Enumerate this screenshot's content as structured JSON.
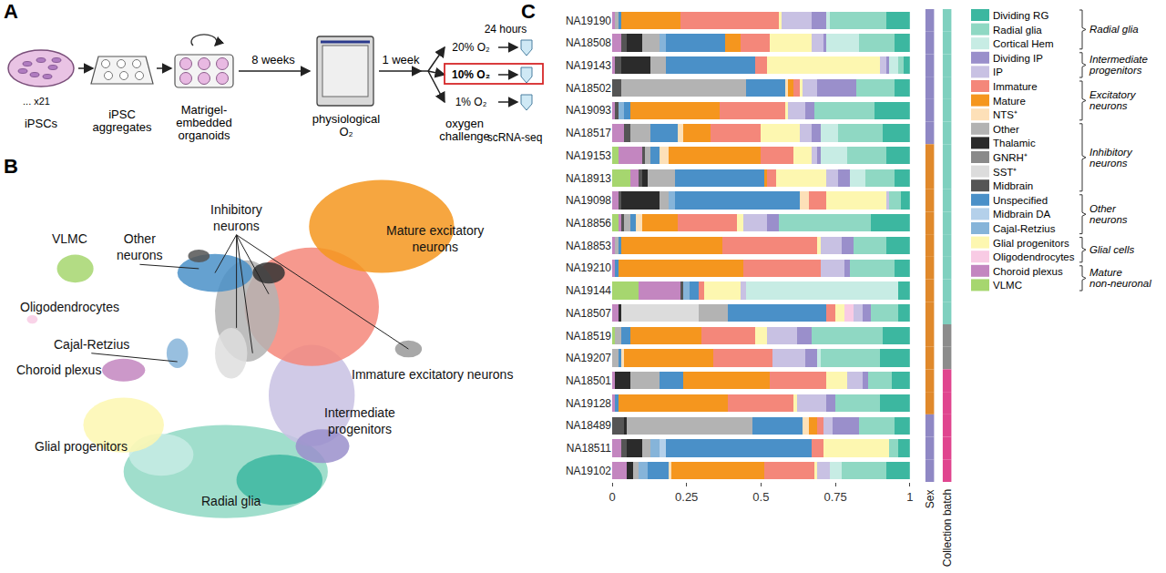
{
  "panel_a": {
    "label": "A",
    "steps": [
      {
        "lines": [
          "iPSCs"
        ],
        "note": "... x21"
      },
      {
        "lines": [
          "iPSC",
          "aggregates"
        ]
      },
      {
        "lines": [
          "Matrigel-",
          "embedded",
          "organoids"
        ]
      },
      {
        "lines": [
          "physiological",
          "O₂"
        ]
      }
    ],
    "transitions": [
      "8 weeks",
      "1 week"
    ],
    "challenge": {
      "label_lines": [
        "oxygen",
        "challenge"
      ],
      "conditions": [
        "20% O₂",
        "10% O₂",
        "1% O₂"
      ],
      "highlighted": "10% O₂",
      "duration": "24 hours",
      "readout": "scRNA-seq"
    }
  },
  "chart_data": [
    {
      "panel_label": "B",
      "type": "umap",
      "xlim": [
        0,
        100
      ],
      "ylim": [
        0,
        100
      ],
      "tick_labels": false,
      "clusters": [
        {
          "color": "#8fd8c3",
          "x": 42,
          "y": 24,
          "rx": 19,
          "ry": 11
        },
        {
          "color": "#3cb7a0",
          "x": 52,
          "y": 22,
          "rx": 8,
          "ry": 6
        },
        {
          "color": "#c7ece4",
          "x": 30,
          "y": 28,
          "rx": 6,
          "ry": 5
        },
        {
          "color": "#c8c1e3",
          "x": 58,
          "y": 42,
          "rx": 8,
          "ry": 12
        },
        {
          "color": "#9a8fcb",
          "x": 60,
          "y": 30,
          "rx": 5,
          "ry": 4
        },
        {
          "color": "#fdf7b0",
          "x": 23,
          "y": 35,
          "rx": 7.5,
          "ry": 6.5
        },
        {
          "color": "#c386c0",
          "x": 23,
          "y": 48,
          "rx": 4,
          "ry": 2.7
        },
        {
          "color": "#a6d66f",
          "x": 14,
          "y": 72,
          "rx": 3.4,
          "ry": 3.3
        },
        {
          "color": "#f8cbe4",
          "x": 6,
          "y": 60,
          "rx": 1,
          "ry": 1
        },
        {
          "color": "#f4877a",
          "x": 58,
          "y": 63,
          "rx": 12.5,
          "ry": 14
        },
        {
          "color": "#f5961e",
          "x": 71,
          "y": 82,
          "rx": 13.5,
          "ry": 11
        },
        {
          "color": "#b3b3b3",
          "x": 46,
          "y": 62,
          "rx": 6,
          "ry": 12
        },
        {
          "color": "#dedede",
          "x": 43,
          "y": 52,
          "rx": 3,
          "ry": 6
        },
        {
          "color": "#4a90c8",
          "x": 40,
          "y": 71,
          "rx": 7,
          "ry": 4.5
        },
        {
          "color": "#333333",
          "x": 50,
          "y": 71,
          "rx": 3,
          "ry": 2.5
        },
        {
          "color": "#555555",
          "x": 37,
          "y": 75,
          "rx": 2,
          "ry": 1.5
        },
        {
          "color": "#86b4d9",
          "x": 33,
          "y": 52,
          "rx": 2,
          "ry": 3.5
        },
        {
          "color": "#999999",
          "x": 76,
          "y": 53,
          "rx": 2.5,
          "ry": 2
        }
      ],
      "labels": [
        {
          "lines": [
            "VLMC"
          ],
          "x": 13,
          "y": 79
        },
        {
          "lines": [
            "Oligodendrocytes"
          ],
          "x": 13,
          "y": 63
        },
        {
          "lines": [
            "Other",
            "neurons"
          ],
          "x": 26,
          "y": 73,
          "points_to": [
            [
              37,
              72
            ]
          ]
        },
        {
          "lines": [
            "Inhibitory",
            "neurons"
          ],
          "x": 44,
          "y": 80,
          "points_to": [
            [
              40,
              71
            ],
            [
              44,
              58
            ],
            [
              47,
              52
            ],
            [
              50,
              66
            ],
            [
              76,
              53
            ]
          ]
        },
        {
          "lines": [
            "Mature excitatory",
            "neurons"
          ],
          "x": 81,
          "y": 79
        },
        {
          "lines": [
            "Cajal-Retzius"
          ],
          "x": 17,
          "y": 52,
          "points_to": [
            [
              33,
              50
            ]
          ]
        },
        {
          "lines": [
            "Choroid plexus"
          ],
          "x": 11,
          "y": 48
        },
        {
          "lines": [
            "Immature excitatory neurons"
          ],
          "x": 80.5,
          "y": 47
        },
        {
          "lines": [
            "Intermediate",
            "progenitors"
          ],
          "x": 67,
          "y": 36
        },
        {
          "lines": [
            "Glial progenitors"
          ],
          "x": 15,
          "y": 30
        },
        {
          "lines": [
            "Radial glia"
          ],
          "x": 43,
          "y": 17
        }
      ]
    },
    {
      "panel_label": "C",
      "type": "bar",
      "orientation": "horizontal",
      "stacked": true,
      "grid": false,
      "legend": "right",
      "xlim": [
        0,
        1
      ],
      "xticks": [
        0,
        0.25,
        0.5,
        0.75,
        1
      ],
      "categories": [
        "NA19190",
        "NA18508",
        "NA19143",
        "NA18502",
        "NA19093",
        "NA18517",
        "NA19153",
        "NA18913",
        "NA19098",
        "NA18856",
        "NA18853",
        "NA19210",
        "NA19144",
        "NA18507",
        "NA18519",
        "NA19207",
        "NA18501",
        "NA19128",
        "NA18489",
        "NA18511",
        "NA19102"
      ],
      "series": [
        {
          "name": "VLMC",
          "color": "#a6d66f",
          "values": [
            0,
            0,
            0,
            0,
            0,
            0,
            0.02,
            0.06,
            0,
            0.02,
            0,
            0,
            0.09,
            0,
            0.01,
            0,
            0,
            0,
            0,
            0,
            0
          ]
        },
        {
          "name": "Choroid plexus",
          "color": "#c386c0",
          "values": [
            0.01,
            0.03,
            0.01,
            0,
            0.01,
            0.04,
            0.08,
            0.03,
            0.02,
            0.01,
            0.01,
            0.01,
            0.14,
            0.02,
            0,
            0,
            0.01,
            0.01,
            0,
            0.03,
            0.05
          ]
        },
        {
          "name": "Midbrain",
          "color": "#555555",
          "values": [
            0,
            0.02,
            0.02,
            0.03,
            0.01,
            0.02,
            0.01,
            0.01,
            0.01,
            0.01,
            0,
            0,
            0.01,
            0,
            0,
            0,
            0,
            0,
            0.04,
            0.02,
            0
          ]
        },
        {
          "name": "Thalamic",
          "color": "#2b2b2b",
          "values": [
            0,
            0.05,
            0.1,
            0,
            0,
            0,
            0,
            0.02,
            0.13,
            0,
            0,
            0,
            0,
            0.01,
            0,
            0,
            0.05,
            0,
            0.01,
            0.05,
            0.02
          ]
        },
        {
          "name": "GNRH⁺",
          "color": "#8a8a8a",
          "values": [
            0,
            0,
            0,
            0,
            0,
            0,
            0,
            0,
            0,
            0,
            0,
            0,
            0,
            0,
            0,
            0,
            0,
            0,
            0,
            0,
            0
          ]
        },
        {
          "name": "SST⁺",
          "color": "#dcdcdc",
          "values": [
            0,
            0,
            0,
            0,
            0,
            0,
            0,
            0,
            0,
            0,
            0,
            0,
            0,
            0.26,
            0,
            0,
            0,
            0,
            0,
            0,
            0
          ]
        },
        {
          "name": "Other",
          "color": "#b3b3b3",
          "values": [
            0.01,
            0.06,
            0.05,
            0.42,
            0,
            0.07,
            0.02,
            0.09,
            0.03,
            0.02,
            0.01,
            0,
            0,
            0.1,
            0.02,
            0.02,
            0.1,
            0,
            0.42,
            0.03,
            0.02
          ]
        },
        {
          "name": "Cajal-Retzius",
          "color": "#86b4d9",
          "values": [
            0,
            0.02,
            0,
            0,
            0.02,
            0,
            0,
            0,
            0.02,
            0,
            0,
            0,
            0.02,
            0,
            0,
            0,
            0,
            0,
            0,
            0.03,
            0.03
          ]
        },
        {
          "name": "Midbrain DA",
          "color": "#b4d0ea",
          "values": [
            0,
            0,
            0,
            0,
            0,
            0,
            0,
            0,
            0,
            0,
            0,
            0,
            0,
            0,
            0,
            0,
            0,
            0,
            0,
            0.02,
            0
          ]
        },
        {
          "name": "Unspecified",
          "color": "#4a90c8",
          "values": [
            0.01,
            0.2,
            0.3,
            0.13,
            0.02,
            0.09,
            0.03,
            0.3,
            0.42,
            0.02,
            0.01,
            0.01,
            0.03,
            0.33,
            0.03,
            0.01,
            0.08,
            0.01,
            0.17,
            0.49,
            0.07
          ]
        },
        {
          "name": "NTS⁺",
          "color": "#fde0b8",
          "values": [
            0,
            0,
            0,
            0.01,
            0,
            0.02,
            0.03,
            0,
            0.03,
            0.02,
            0,
            0,
            0,
            0,
            0,
            0.01,
            0,
            0,
            0.02,
            0,
            0.01
          ]
        },
        {
          "name": "Mature",
          "color": "#f5961e",
          "values": [
            0.2,
            0.05,
            0,
            0.02,
            0.3,
            0.09,
            0.31,
            0.01,
            0,
            0.12,
            0.34,
            0.42,
            0,
            0,
            0.24,
            0.3,
            0.29,
            0.37,
            0.03,
            0,
            0.31
          ]
        },
        {
          "name": "Immature",
          "color": "#f4877a",
          "values": [
            0.33,
            0.1,
            0.04,
            0.02,
            0.22,
            0.17,
            0.11,
            0.03,
            0.06,
            0.2,
            0.32,
            0.26,
            0.02,
            0.03,
            0.18,
            0.2,
            0.19,
            0.22,
            0.02,
            0.04,
            0.17
          ]
        },
        {
          "name": "Glial progenitors",
          "color": "#fdf7b0",
          "values": [
            0.01,
            0.14,
            0.38,
            0.01,
            0.01,
            0.13,
            0.06,
            0.17,
            0.2,
            0.02,
            0.01,
            0,
            0.12,
            0.03,
            0.04,
            0,
            0.07,
            0.01,
            0,
            0.22,
            0.01
          ]
        },
        {
          "name": "Oligodendrocytes",
          "color": "#f8cbe4",
          "values": [
            0,
            0,
            0,
            0,
            0,
            0,
            0,
            0,
            0,
            0,
            0,
            0,
            0,
            0.03,
            0,
            0,
            0,
            0,
            0,
            0,
            0
          ]
        },
        {
          "name": "IP",
          "color": "#c8c1e3",
          "values": [
            0.1,
            0.04,
            0.02,
            0.05,
            0.06,
            0.04,
            0.02,
            0.04,
            0.01,
            0.08,
            0.07,
            0.08,
            0.02,
            0.03,
            0.1,
            0.11,
            0.05,
            0.1,
            0.03,
            0,
            0.04
          ]
        },
        {
          "name": "Dividing IP",
          "color": "#9a8fcb",
          "values": [
            0.05,
            0.01,
            0.01,
            0.13,
            0.03,
            0.03,
            0.01,
            0.04,
            0,
            0.04,
            0.04,
            0.02,
            0,
            0.03,
            0.05,
            0.04,
            0.02,
            0.03,
            0.09,
            0,
            0
          ]
        },
        {
          "name": "Cortical Hem",
          "color": "#c7ece4",
          "values": [
            0.01,
            0.11,
            0.03,
            0,
            0,
            0.06,
            0.09,
            0.05,
            0,
            0,
            0,
            0,
            0.51,
            0,
            0,
            0.01,
            0,
            0,
            0,
            0,
            0.04
          ]
        },
        {
          "name": "Radial glia",
          "color": "#8fd8c3",
          "values": [
            0.19,
            0.12,
            0.02,
            0.13,
            0.2,
            0.15,
            0.13,
            0.1,
            0.04,
            0.31,
            0.11,
            0.15,
            0,
            0.09,
            0.24,
            0.2,
            0.08,
            0.15,
            0.12,
            0.03,
            0.15
          ]
        },
        {
          "name": "Dividing RG",
          "color": "#3cb7a0",
          "values": [
            0.08,
            0.05,
            0.02,
            0.05,
            0.12,
            0.09,
            0.08,
            0.05,
            0.03,
            0.13,
            0.08,
            0.05,
            0.04,
            0.04,
            0.09,
            0.1,
            0.06,
            0.1,
            0.05,
            0.04,
            0.08
          ]
        }
      ],
      "legend_groups": [
        {
          "lines": [
            "Radial glia"
          ],
          "members": [
            "Dividing RG",
            "Radial glia",
            "Cortical Hem"
          ]
        },
        {
          "lines": [
            "Intermediate",
            "progenitors"
          ],
          "members": [
            "Dividing IP",
            "IP"
          ]
        },
        {
          "lines": [
            "Excitatory",
            "neurons"
          ],
          "members": [
            "Immature",
            "Mature",
            "NTS⁺"
          ]
        },
        {
          "lines": [
            "Inhibitory",
            "neurons"
          ],
          "members": [
            "Other",
            "Thalamic",
            "GNRH⁺",
            "SST⁺",
            "Midbrain"
          ]
        },
        {
          "lines": [
            "Other",
            "neurons"
          ],
          "members": [
            "Unspecified",
            "Midbrain DA",
            "Cajal-Retzius"
          ]
        },
        {
          "lines": [
            "Glial cells"
          ],
          "members": [
            "Glial progenitors",
            "Oligodendrocytes"
          ]
        },
        {
          "lines": [
            "Mature",
            "non-neuronal"
          ],
          "members": [
            "Choroid plexus",
            "VLMC"
          ]
        }
      ],
      "annotation_columns": [
        {
          "name": "Sex",
          "colors": [
            "#8f88c4",
            "#8f88c4",
            "#8f88c4",
            "#8f88c4",
            "#8f88c4",
            "#8f88c4",
            "#e0892b",
            "#e0892b",
            "#e0892b",
            "#e0892b",
            "#e0892b",
            "#e0892b",
            "#e0892b",
            "#e0892b",
            "#e0892b",
            "#e0892b",
            "#e0892b",
            "#e0892b",
            "#8f88c4",
            "#8f88c4",
            "#8f88c4"
          ]
        },
        {
          "name": "Collection batch",
          "colors": [
            "#7fd0bf",
            "#7fd0bf",
            "#7fd0bf",
            "#7fd0bf",
            "#7fd0bf",
            "#7fd0bf",
            "#7fd0bf",
            "#7fd0bf",
            "#7fd0bf",
            "#7fd0bf",
            "#7fd0bf",
            "#7fd0bf",
            "#7fd0bf",
            "#7fd0bf",
            "#8c8c8c",
            "#8c8c8c",
            "#e0458f",
            "#e0458f",
            "#e0458f",
            "#e0458f",
            "#e0458f"
          ]
        }
      ]
    }
  ]
}
